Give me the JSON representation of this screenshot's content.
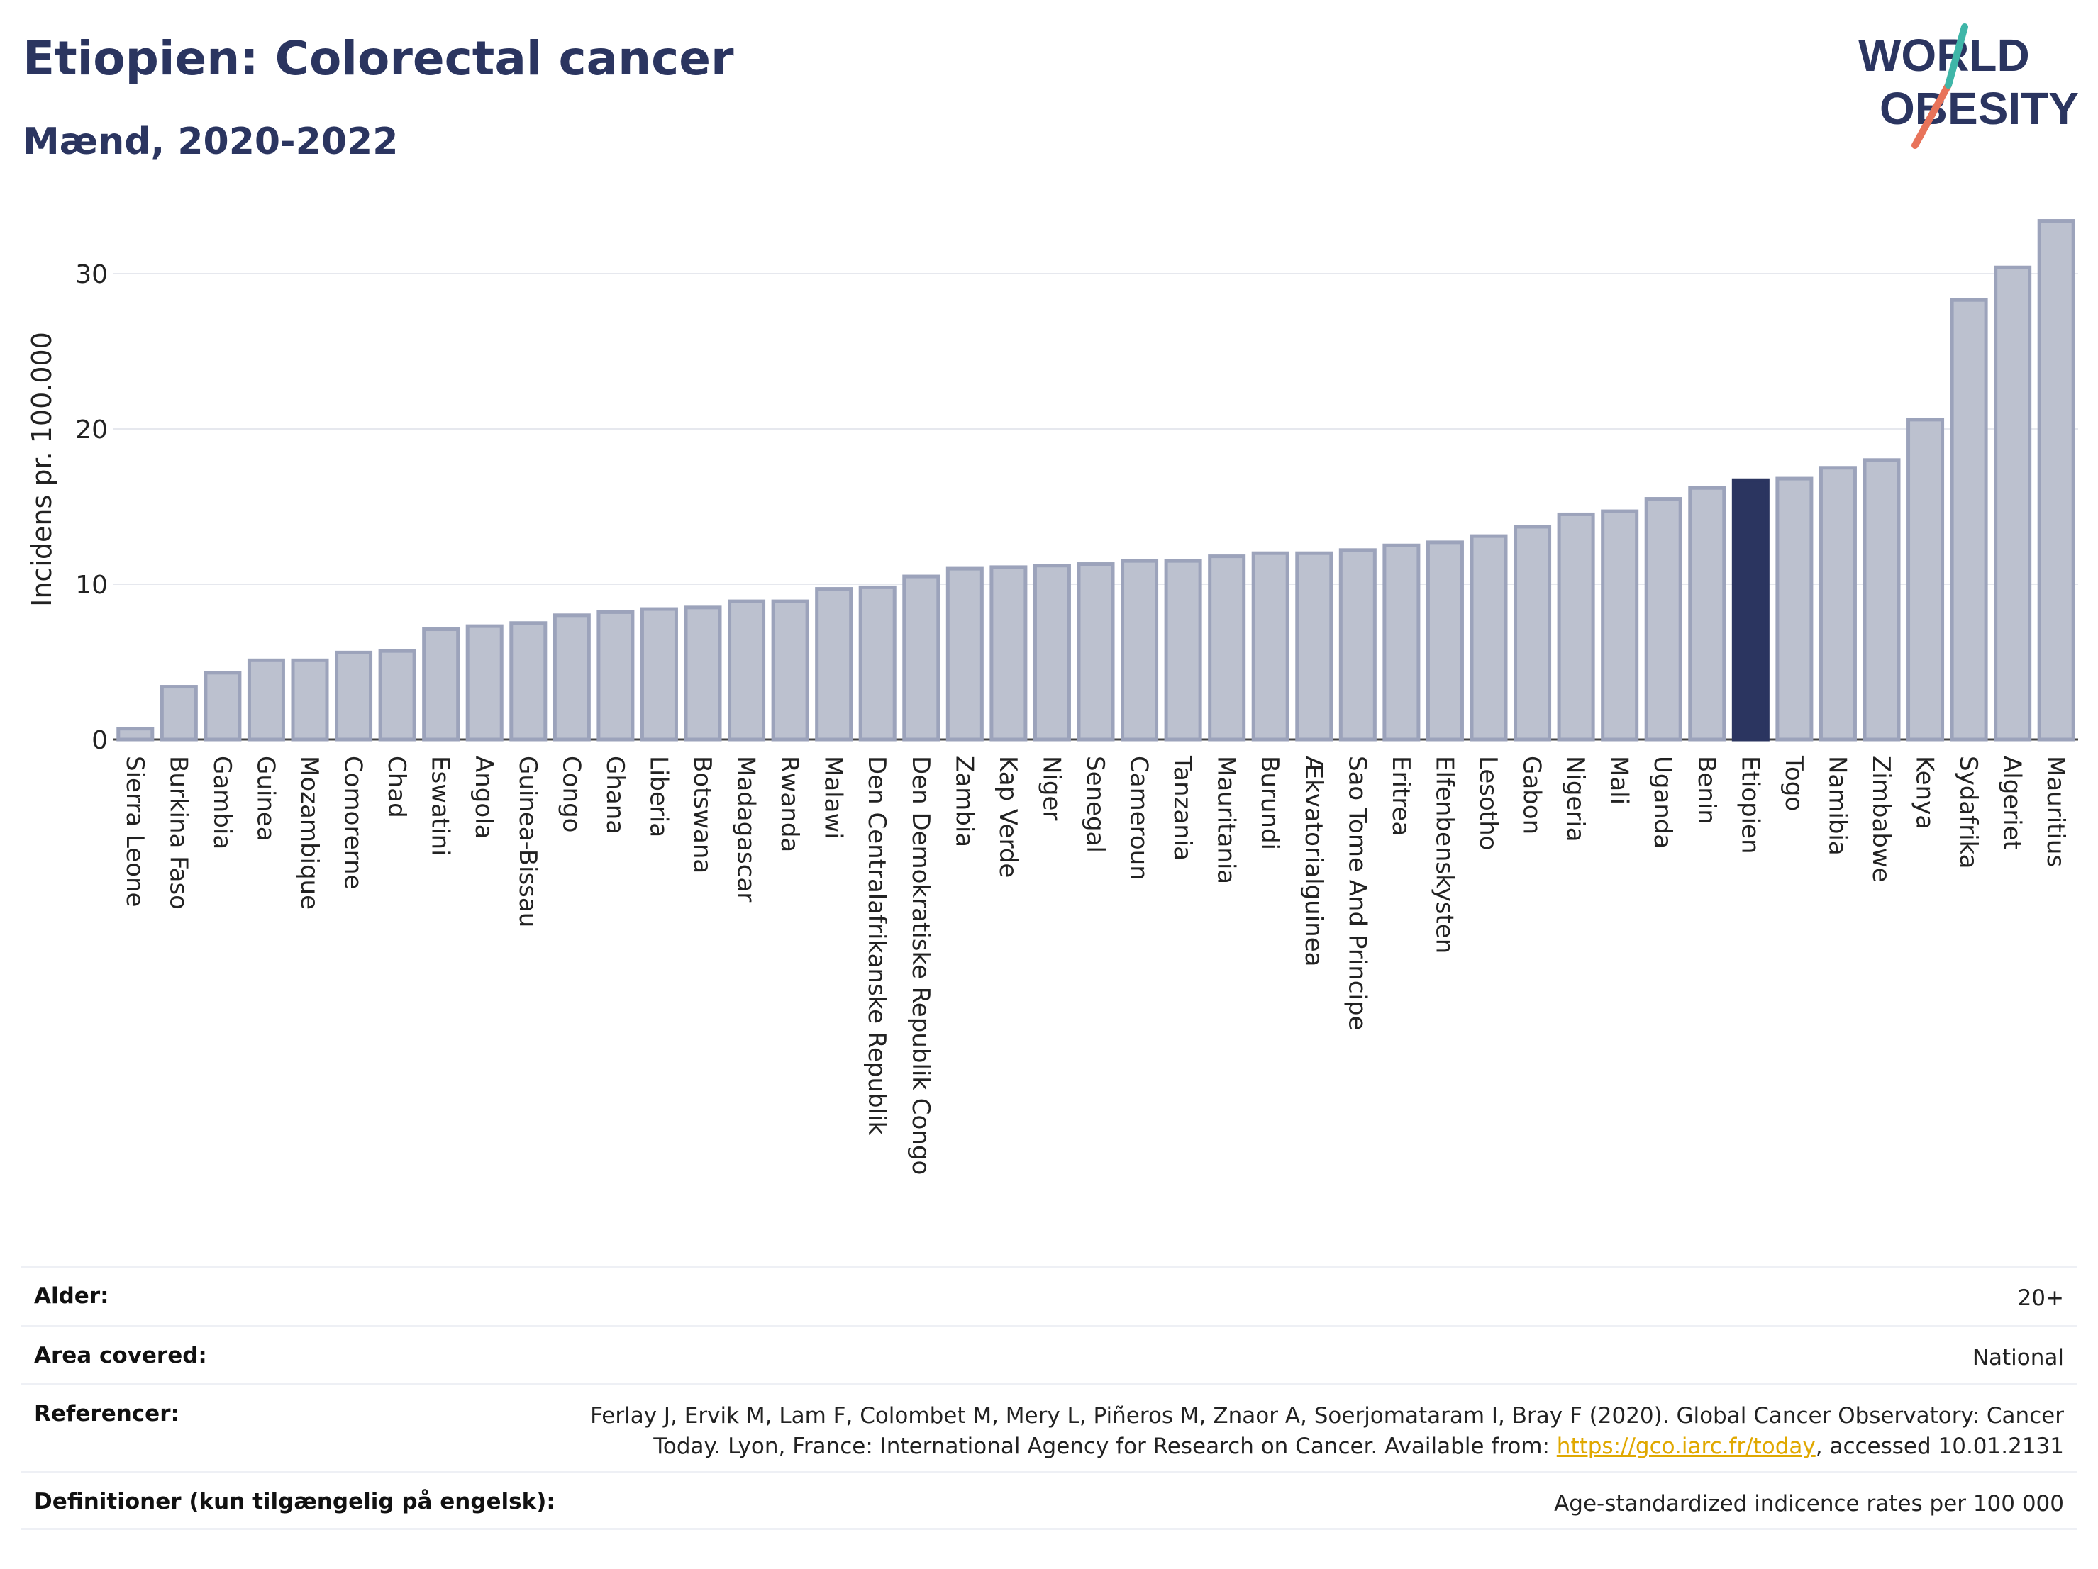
{
  "header": {
    "title": "Etiopien: Colorectal cancer",
    "subtitle": "Mænd, 2020-2022"
  },
  "logo": {
    "line1": "WORLD",
    "line2": "OBESITY"
  },
  "colors": {
    "bar": "#bcc1cf",
    "bar_border": "#9ca3bb",
    "highlight": "#2b3560",
    "title": "#2b3560"
  },
  "chart_data": {
    "type": "bar",
    "ylabel": "Incidens pr. 100.000",
    "ylim": [
      0,
      34
    ],
    "yticks": [
      0,
      10,
      20,
      30
    ],
    "highlight": "Etiopien",
    "categories": [
      "Sierra Leone",
      "Burkina Faso",
      "Gambia",
      "Guinea",
      "Mozambique",
      "Comorerne",
      "Chad",
      "Eswatini",
      "Angola",
      "Guinea-Bissau",
      "Congo",
      "Ghana",
      "Liberia",
      "Botswana",
      "Madagascar",
      "Rwanda",
      "Malawi",
      "Den Centralafrikanske Republik",
      "Den Demokratiske Republik Congo",
      "Zambia",
      "Kap Verde",
      "Niger",
      "Senegal",
      "Cameroun",
      "Tanzania",
      "Mauritania",
      "Burundi",
      "Ækvatorialguinea",
      "Sao Tome And Principe",
      "Eritrea",
      "Elfenbenskysten",
      "Lesotho",
      "Gabon",
      "Nigeria",
      "Mali",
      "Uganda",
      "Benin",
      "Etiopien",
      "Togo",
      "Namibia",
      "Zimbabwe",
      "Kenya",
      "Sydafrika",
      "Algeriet",
      "Mauritius"
    ],
    "values": [
      0.7,
      3.4,
      4.3,
      5.1,
      5.1,
      5.6,
      5.7,
      7.1,
      7.3,
      7.5,
      8.0,
      8.2,
      8.4,
      8.5,
      8.9,
      8.9,
      9.7,
      9.8,
      10.5,
      11.0,
      11.1,
      11.2,
      11.3,
      11.5,
      11.5,
      11.8,
      12.0,
      12.0,
      12.2,
      12.5,
      12.7,
      13.1,
      13.7,
      14.5,
      14.7,
      15.5,
      16.2,
      16.7,
      16.8,
      17.5,
      18.0,
      20.6,
      28.3,
      30.4,
      33.4
    ]
  },
  "meta": {
    "rows": [
      {
        "key": "Alder:",
        "value": "20+"
      },
      {
        "key": "Area covered:",
        "value": "National"
      },
      {
        "key": "Referencer:",
        "value_pre": "Ferlay J, Ervik M, Lam F, Colombet M, Mery L, Piñeros M, Znaor A, Soerjomataram I, Bray F (2020). Global Cancer Observatory: Cancer Today. Lyon, France: International Agency for Research on Cancer. Available from: ",
        "link": "https://gco.iarc.fr/today",
        "value_post": ", accessed 10.01.2131"
      },
      {
        "key": "Definitioner (kun tilgængelig på engelsk):",
        "value": "Age-standardized indicence rates per 100 000"
      }
    ]
  }
}
